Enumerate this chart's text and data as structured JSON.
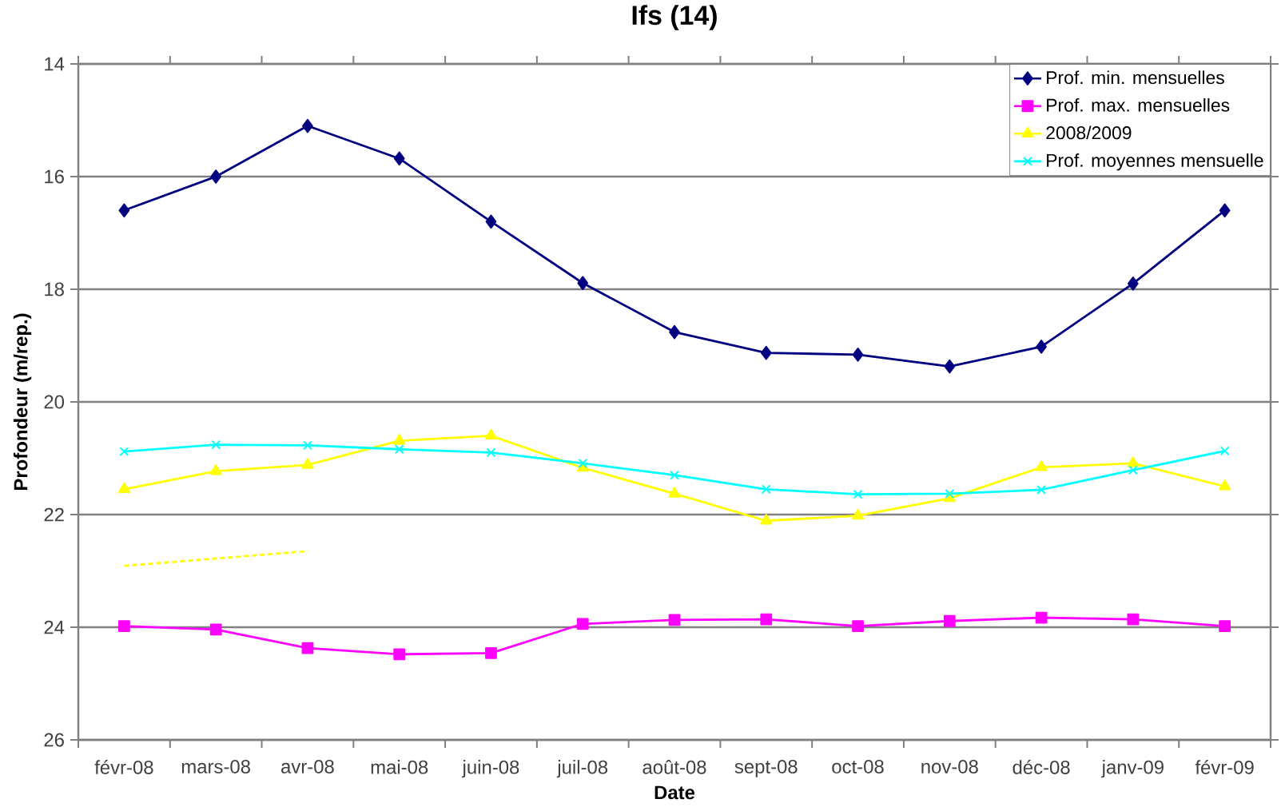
{
  "chart_data": {
    "type": "line",
    "title": "Ifs (14)",
    "xlabel": "Date",
    "ylabel": "Profondeur (m/rep.)",
    "categories": [
      "févr-08",
      "mars-08",
      "avr-08",
      "mai-08",
      "juin-08",
      "juil-08",
      "août-08",
      "sept-08",
      "oct-08",
      "nov-08",
      "déc-08",
      "janv-09",
      "févr-09"
    ],
    "series": [
      {
        "name": "Prof. min. mensuelles",
        "color": "#000080",
        "marker": "diamond",
        "values": [
          16.6,
          16.0,
          15.1,
          15.68,
          16.8,
          17.89,
          18.76,
          19.13,
          19.16,
          19.37,
          19.02,
          17.9,
          16.6
        ]
      },
      {
        "name": "Prof. max. mensuelles",
        "color": "#ff00ff",
        "marker": "square",
        "values": [
          23.98,
          24.04,
          24.37,
          24.48,
          24.46,
          23.94,
          23.87,
          23.86,
          23.98,
          23.89,
          23.83,
          23.86,
          23.98
        ]
      },
      {
        "name": "2008/2009",
        "color": "#ffff00",
        "marker": "triangle",
        "values": [
          21.55,
          21.23,
          21.12,
          20.69,
          20.6,
          21.17,
          21.63,
          22.11,
          22.02,
          21.71,
          21.16,
          21.09,
          21.5
        ]
      },
      {
        "name": "Prof. moyennes mensuelle",
        "color": "#00ffff",
        "marker": "cross",
        "values": [
          20.88,
          20.76,
          20.77,
          20.84,
          20.9,
          21.09,
          21.3,
          21.55,
          21.64,
          21.63,
          21.56,
          21.21,
          20.87
        ]
      },
      {
        "color": "#ffff00",
        "marker": "none",
        "line_style": "dashed",
        "values": [
          22.91,
          22.78,
          22.65,
          null,
          null,
          null,
          null,
          null,
          null,
          null,
          null,
          null,
          null
        ]
      }
    ],
    "ylim": [
      26,
      14
    ],
    "yticks": [
      14,
      16,
      18,
      20,
      22,
      24,
      26
    ],
    "grid": "y",
    "legend": "top right"
  }
}
